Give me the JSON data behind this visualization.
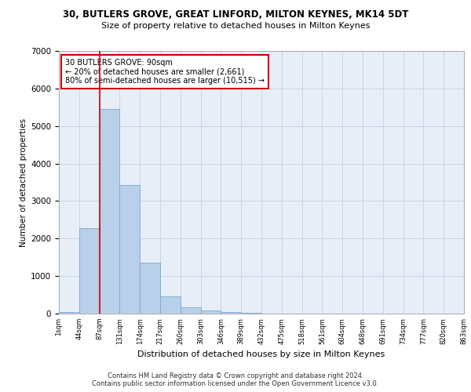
{
  "title1": "30, BUTLERS GROVE, GREAT LINFORD, MILTON KEYNES, MK14 5DT",
  "title2": "Size of property relative to detached houses in Milton Keynes",
  "xlabel": "Distribution of detached houses by size in Milton Keynes",
  "ylabel": "Number of detached properties",
  "footer1": "Contains HM Land Registry data © Crown copyright and database right 2024.",
  "footer2": "Contains public sector information licensed under the Open Government Licence v3.0.",
  "annotation_title": "30 BUTLERS GROVE: 90sqm",
  "annotation_line1": "← 20% of detached houses are smaller (2,661)",
  "annotation_line2": "80% of semi-detached houses are larger (10,515) →",
  "bar_values": [
    50,
    2270,
    5450,
    3430,
    1350,
    450,
    170,
    90,
    50,
    25,
    10,
    0,
    0,
    0,
    0,
    0,
    0,
    0,
    0,
    0
  ],
  "bin_labels": [
    "1sqm",
    "44sqm",
    "87sqm",
    "131sqm",
    "174sqm",
    "217sqm",
    "260sqm",
    "303sqm",
    "346sqm",
    "389sqm",
    "432sqm",
    "475sqm",
    "518sqm",
    "561sqm",
    "604sqm",
    "648sqm",
    "691sqm",
    "734sqm",
    "777sqm",
    "820sqm",
    "863sqm"
  ],
  "bar_color": "#b8d0ea",
  "bar_edge_color": "#7aa8d0",
  "vline_color": "#cc0000",
  "vline_x_index": 2,
  "annotation_box_color": "#cc0000",
  "grid_color": "#c8d4e8",
  "background_color": "#e8eef8",
  "ylim": [
    0,
    7000
  ],
  "yticks": [
    0,
    1000,
    2000,
    3000,
    4000,
    5000,
    6000,
    7000
  ]
}
